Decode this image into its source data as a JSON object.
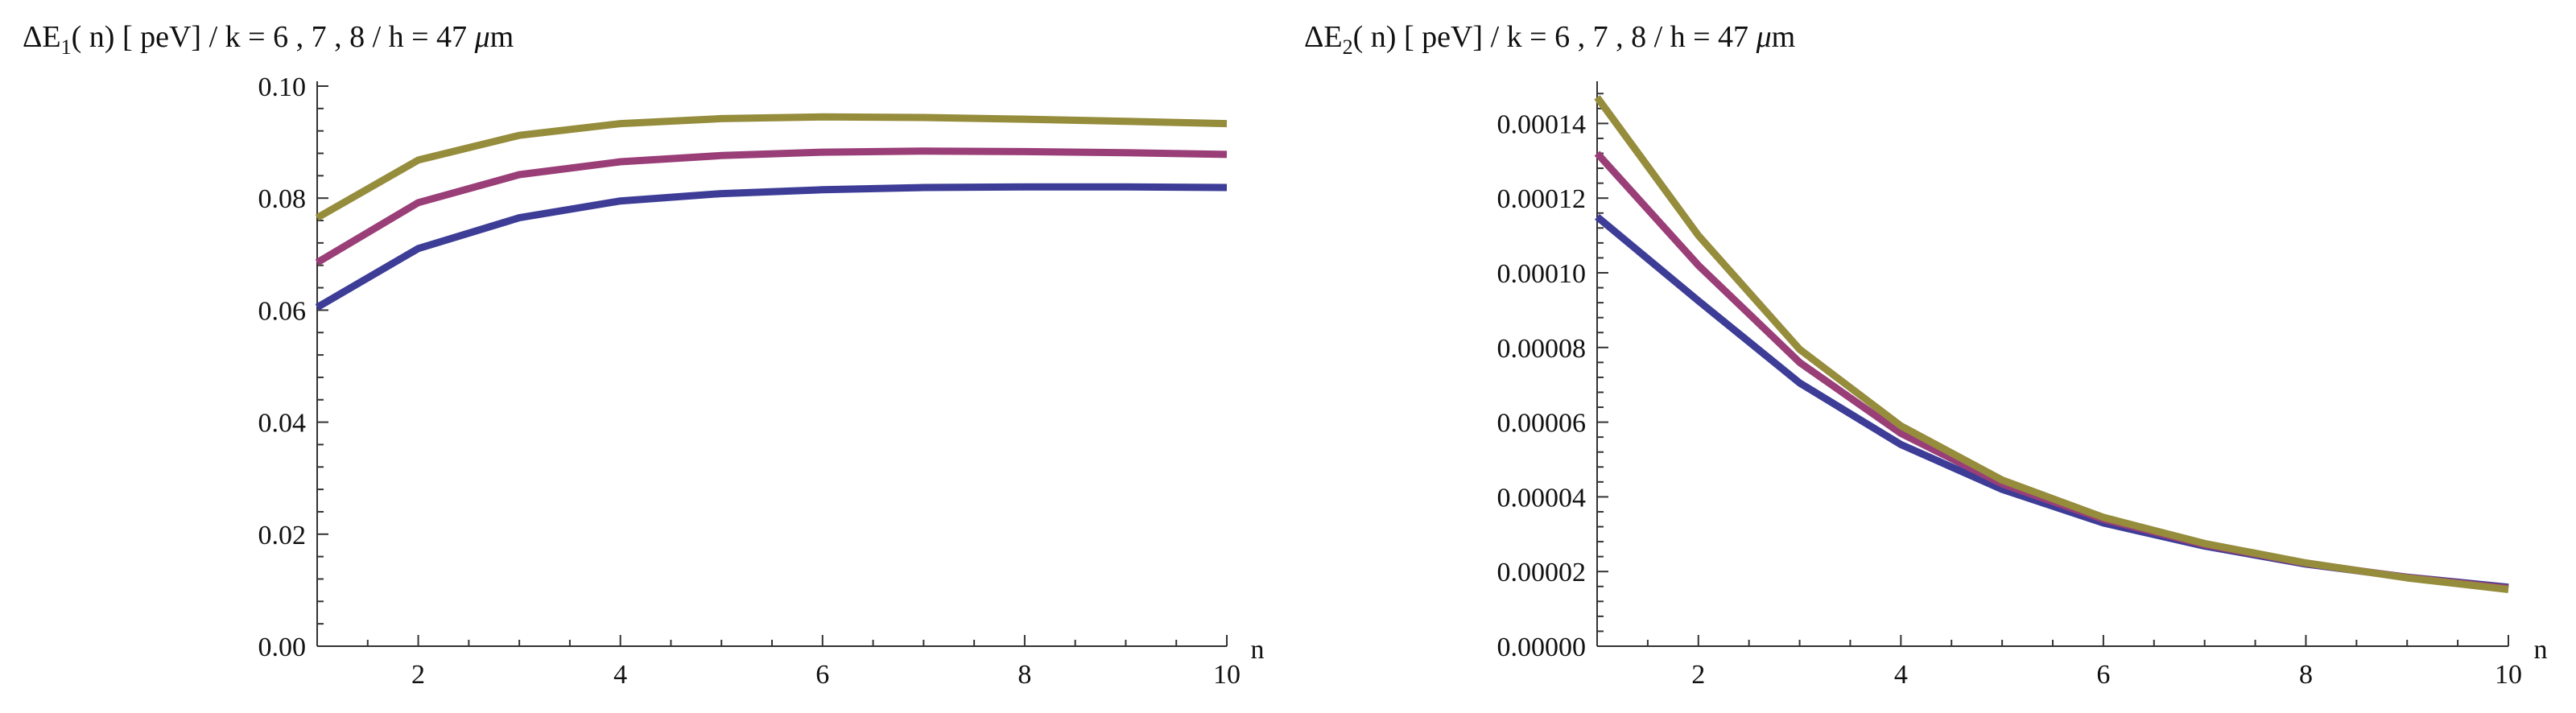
{
  "chart_data": [
    {
      "type": "line",
      "title_parts": {
        "prefix": "ΔE",
        "subscript": "1",
        "rest": "( n)  [ peV] /  k = 6 , 7 , 8 / h = 47  ",
        "unit_mu": "μ",
        "unit_rest": "m"
      },
      "xlabel": "n",
      "ylabel": "",
      "xlim": [
        1,
        10
      ],
      "ylim": [
        0,
        0.1
      ],
      "x_ticks": [
        2,
        4,
        6,
        8,
        10
      ],
      "x_tick_labels": [
        "2",
        "4",
        "6",
        "8",
        "10"
      ],
      "y_ticks": [
        0,
        0.02,
        0.04,
        0.06,
        0.08,
        0.1
      ],
      "y_tick_labels": [
        "0.00",
        "0.02",
        "0.04",
        "0.06",
        "0.08",
        "0.10"
      ],
      "grid": false,
      "x": [
        1,
        2,
        3,
        4,
        5,
        6,
        7,
        8,
        9,
        10
      ],
      "series": [
        {
          "color": "#3d3d98",
          "values": [
            0.0605,
            0.071,
            0.0765,
            0.0795,
            0.0808,
            0.0815,
            0.0819,
            0.082,
            0.082,
            0.0819
          ]
        },
        {
          "color": "#9a3e78",
          "values": [
            0.0685,
            0.0792,
            0.0842,
            0.0865,
            0.0876,
            0.0882,
            0.0884,
            0.0883,
            0.0881,
            0.0878
          ]
        },
        {
          "color": "#958c3c",
          "values": [
            0.0765,
            0.0868,
            0.0912,
            0.0933,
            0.0942,
            0.0945,
            0.0944,
            0.0941,
            0.0937,
            0.0933
          ]
        }
      ]
    },
    {
      "type": "line",
      "title_parts": {
        "prefix": "ΔE",
        "subscript": "2",
        "rest": "( n)  [ peV] /  k = 6 , 7 , 8 / h = 47  ",
        "unit_mu": "μ",
        "unit_rest": "m"
      },
      "xlabel": "n",
      "ylabel": "",
      "xlim": [
        1,
        10
      ],
      "ylim": [
        0,
        0.00015
      ],
      "x_ticks": [
        2,
        4,
        6,
        8,
        10
      ],
      "x_tick_labels": [
        "2",
        "4",
        "6",
        "8",
        "10"
      ],
      "y_ticks": [
        0,
        2e-05,
        4e-05,
        6e-05,
        8e-05,
        0.0001,
        0.00012,
        0.00014
      ],
      "y_tick_labels": [
        "0.00000",
        "0.00002",
        "0.00004",
        "0.00006",
        "0.00008",
        "0.00010",
        "0.00012",
        "0.00014"
      ],
      "grid": false,
      "x": [
        1,
        2,
        3,
        4,
        5,
        6,
        7,
        8,
        9,
        10
      ],
      "series": [
        {
          "color": "#3d3d98",
          "values": [
            0.000115,
            9.25e-05,
            7.05e-05,
            5.4e-05,
            4.2e-05,
            3.3e-05,
            2.68e-05,
            2.2e-05,
            1.85e-05,
            1.58e-05
          ]
        },
        {
          "color": "#9a3e78",
          "values": [
            0.000132,
            0.000102,
            7.6e-05,
            5.7e-05,
            4.35e-05,
            3.4e-05,
            2.72e-05,
            2.22e-05,
            1.84e-05,
            1.55e-05
          ]
        },
        {
          "color": "#958c3c",
          "values": [
            0.000147,
            0.00011,
            7.95e-05,
            5.9e-05,
            4.45e-05,
            3.45e-05,
            2.75e-05,
            2.23e-05,
            1.83e-05,
            1.52e-05
          ]
        }
      ]
    }
  ]
}
